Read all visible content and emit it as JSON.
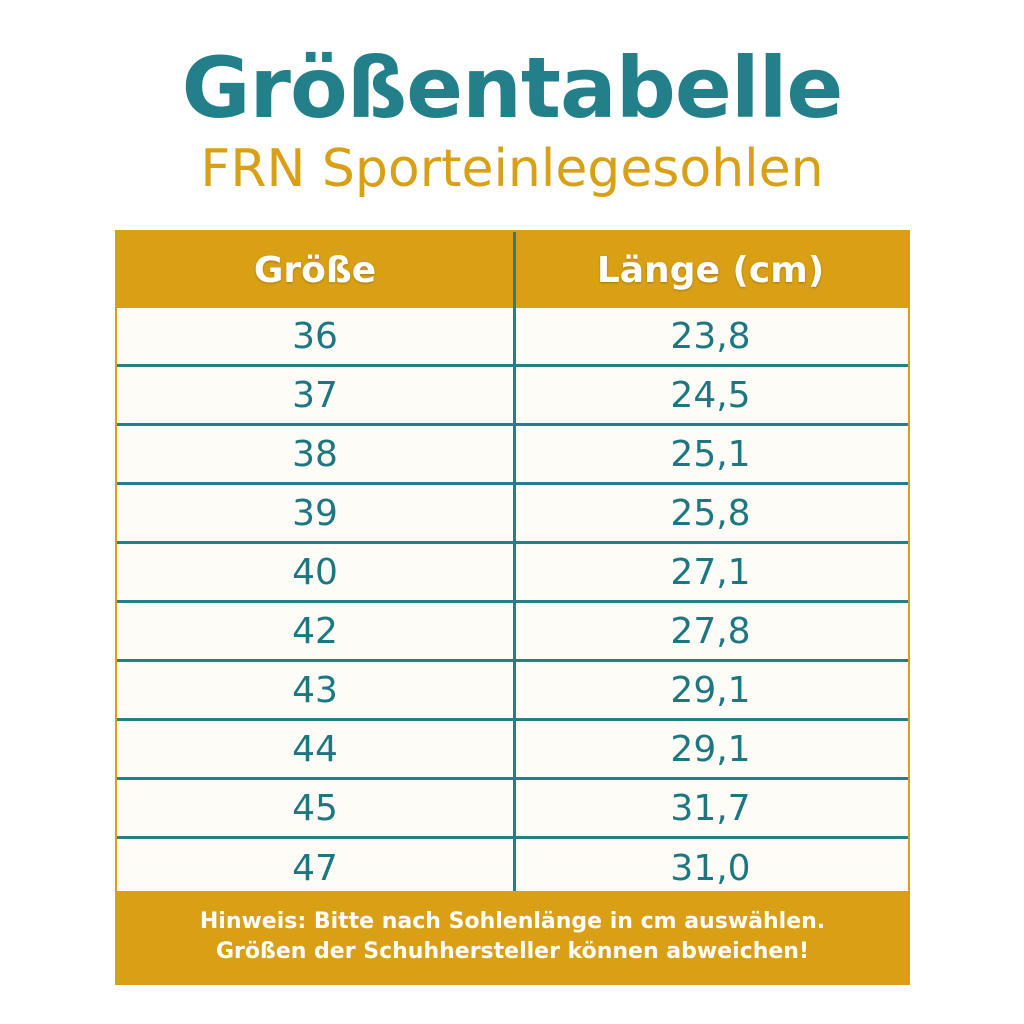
{
  "header": {
    "title": "Größentabelle",
    "subtitle": "FRN Sporteinlegesohlen"
  },
  "table": {
    "columns": [
      "Größe",
      "Länge (cm)"
    ],
    "rows": [
      {
        "size": "36",
        "length": "23,8"
      },
      {
        "size": "37",
        "length": "24,5"
      },
      {
        "size": "38",
        "length": "25,1"
      },
      {
        "size": "39",
        "length": "25,8"
      },
      {
        "size": "40",
        "length": "27,1"
      },
      {
        "size": "42",
        "length": "27,8"
      },
      {
        "size": "43",
        "length": "29,1"
      },
      {
        "size": "44",
        "length": "29,1"
      },
      {
        "size": "45",
        "length": "31,7"
      },
      {
        "size": "47",
        "length": "31,0"
      }
    ]
  },
  "footer": {
    "line1": "Hinweis: Bitte nach  Sohlenlänge in cm auswählen.",
    "line2": "Größen der Schuhhersteller können abweichen!"
  },
  "colors": {
    "teal": "#23808a",
    "gold": "#d9a015",
    "background": "#fdfcf7"
  }
}
